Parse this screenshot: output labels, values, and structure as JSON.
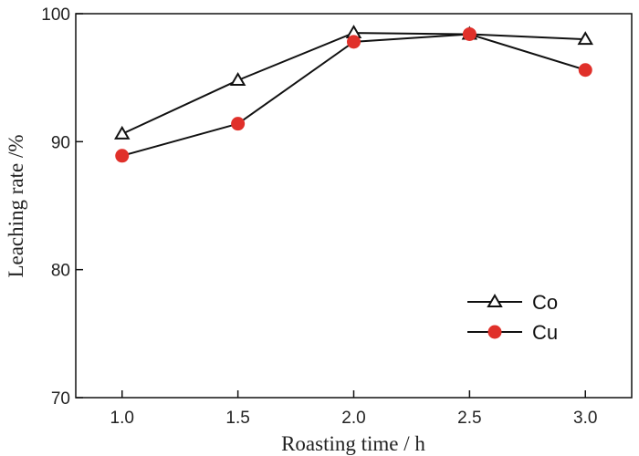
{
  "chart_data": {
    "type": "line",
    "title": "",
    "xlabel": "Roasting time / h",
    "ylabel": "Leaching rate /%",
    "x": [
      1.0,
      1.5,
      2.0,
      2.5,
      3.0
    ],
    "x_tick_labels": [
      "1.0",
      "1.5",
      "2.0",
      "2.5",
      "3.0"
    ],
    "xlim": [
      0.8,
      3.2
    ],
    "y_ticks": [
      70,
      80,
      90,
      100
    ],
    "y_tick_labels": [
      "70",
      "80",
      "90",
      "100"
    ],
    "ylim": [
      70,
      100
    ],
    "grid": false,
    "legend_position": "bottom-right",
    "series": [
      {
        "name": "Co",
        "values": [
          90.6,
          94.8,
          98.5,
          98.4,
          98.0
        ],
        "marker": "open-triangle",
        "color": "#111111"
      },
      {
        "name": "Cu",
        "values": [
          88.9,
          91.4,
          97.8,
          98.4,
          95.6
        ],
        "marker": "filled-circle",
        "color": "#e0302a"
      }
    ]
  }
}
